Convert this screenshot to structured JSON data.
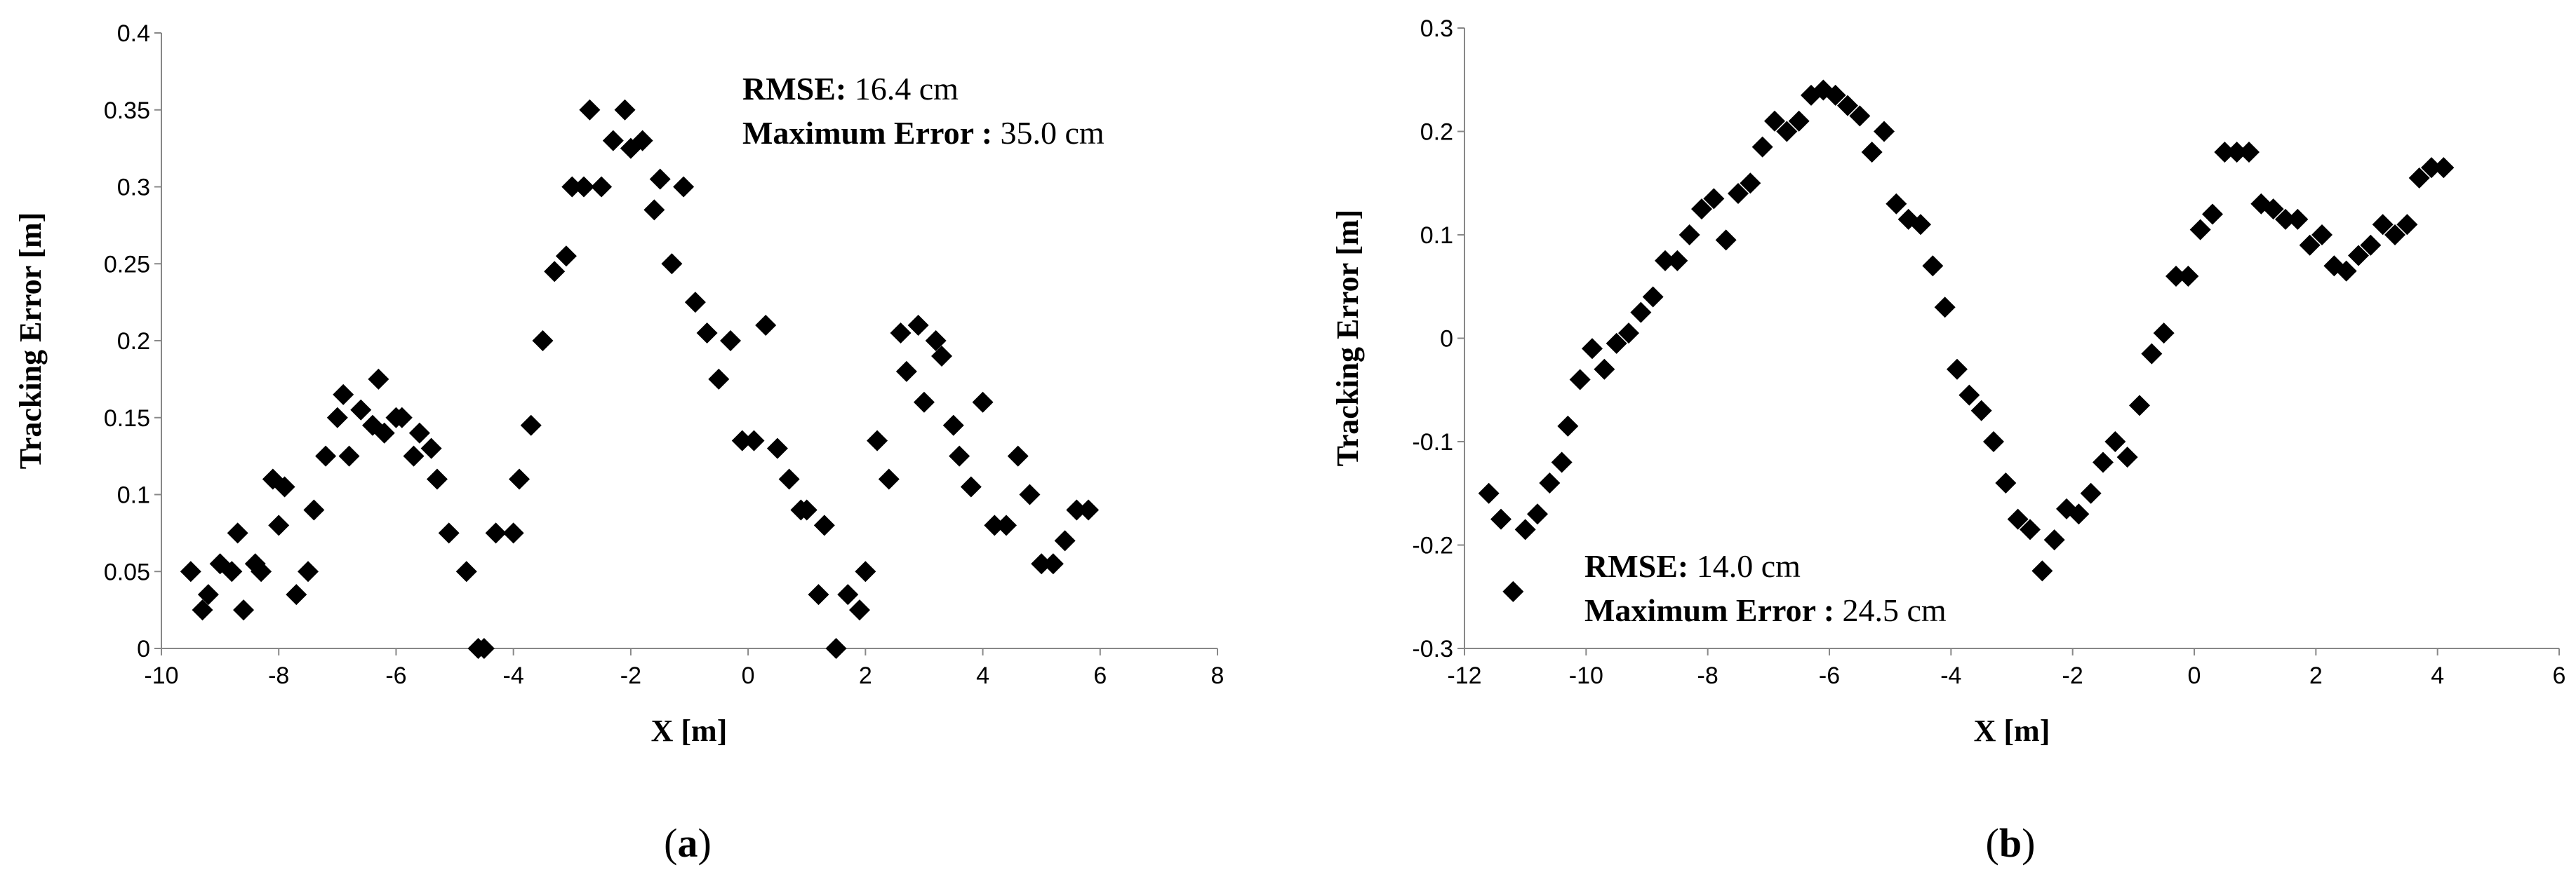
{
  "chart_data": [
    {
      "type": "scatter",
      "panel": "(a)",
      "caption_letter": "a",
      "xlabel": "X [m]",
      "ylabel": "Tracking Error [m]",
      "xlim": [
        -10,
        8
      ],
      "ylim": [
        0,
        0.4
      ],
      "xticks": [
        -10,
        -8,
        -6,
        -4,
        -2,
        0,
        2,
        4,
        6,
        8
      ],
      "yticks": [
        0,
        0.05,
        0.1,
        0.15,
        0.2,
        0.25,
        0.3,
        0.35,
        0.4
      ],
      "xtick_labels": [
        "-10",
        "-8",
        "-6",
        "-4",
        "-2",
        "0",
        "2",
        "4",
        "6",
        "8"
      ],
      "ytick_labels": [
        "0",
        "0.05",
        "0.1",
        "0.15",
        "0.2",
        "0.25",
        "0.3",
        "0.35",
        "0.4"
      ],
      "grid": false,
      "marker": "diamond",
      "annotations": [
        {
          "label": "RMSE:",
          "value": " 16.4 cm"
        },
        {
          "label": "Maximum Error :",
          "value": " 35.0 cm"
        }
      ],
      "x": [
        -9.5,
        -9.3,
        -9.2,
        -9.0,
        -8.8,
        -8.7,
        -8.6,
        -8.4,
        -8.3,
        -8.1,
        -8.0,
        -7.9,
        -7.7,
        -7.5,
        -7.4,
        -7.2,
        -7.0,
        -6.9,
        -6.8,
        -6.6,
        -6.4,
        -6.3,
        -6.2,
        -6.0,
        -5.9,
        -5.7,
        -5.6,
        -5.4,
        -5.3,
        -5.1,
        -4.8,
        -4.6,
        -4.5,
        -4.3,
        -4.0,
        -3.9,
        -3.7,
        -3.5,
        -3.3,
        -3.1,
        -3.0,
        -2.8,
        -2.7,
        -2.5,
        -2.3,
        -2.1,
        -2.0,
        -1.8,
        -1.6,
        -1.5,
        -1.3,
        -1.1,
        -0.9,
        -0.7,
        -0.5,
        -0.3,
        -0.1,
        0.1,
        0.3,
        0.5,
        0.7,
        0.9,
        1.0,
        1.2,
        1.3,
        1.5,
        1.7,
        1.9,
        2.0,
        2.2,
        2.4,
        2.6,
        2.7,
        2.9,
        3.0,
        3.2,
        3.3,
        3.5,
        3.6,
        3.8,
        4.0,
        4.2,
        4.4,
        4.6,
        4.8,
        5.0,
        5.2,
        5.4,
        5.6,
        5.8
      ],
      "y": [
        0.05,
        0.025,
        0.035,
        0.055,
        0.05,
        0.075,
        0.025,
        0.055,
        0.05,
        0.11,
        0.08,
        0.105,
        0.035,
        0.05,
        0.09,
        0.125,
        0.15,
        0.165,
        0.125,
        0.155,
        0.145,
        0.175,
        0.14,
        0.15,
        0.15,
        0.125,
        0.14,
        0.13,
        0.11,
        0.075,
        0.05,
        0.0,
        0.0,
        0.075,
        0.075,
        0.11,
        0.145,
        0.2,
        0.245,
        0.255,
        0.3,
        0.3,
        0.35,
        0.3,
        0.33,
        0.35,
        0.325,
        0.33,
        0.285,
        0.305,
        0.25,
        0.3,
        0.225,
        0.205,
        0.175,
        0.2,
        0.135,
        0.135,
        0.21,
        0.13,
        0.11,
        0.09,
        0.09,
        0.035,
        0.08,
        0.0,
        0.035,
        0.025,
        0.05,
        0.135,
        0.11,
        0.205,
        0.18,
        0.21,
        0.16,
        0.2,
        0.19,
        0.145,
        0.125,
        0.105,
        0.16,
        0.08,
        0.08,
        0.125,
        0.1,
        0.055,
        0.055,
        0.07,
        0.09,
        0.09
      ]
    },
    {
      "type": "scatter",
      "panel": "(b)",
      "caption_letter": "b",
      "xlabel": "X [m]",
      "ylabel": "Tracking Error [m]",
      "xlim": [
        -12,
        6
      ],
      "ylim": [
        -0.3,
        0.3
      ],
      "xticks": [
        -12,
        -10,
        -8,
        -6,
        -4,
        -2,
        0,
        2,
        4,
        6
      ],
      "yticks": [
        -0.3,
        -0.2,
        -0.1,
        0,
        0.1,
        0.2,
        0.3
      ],
      "xtick_labels": [
        "-12",
        "-10",
        "-8",
        "-6",
        "-4",
        "-2",
        "0",
        "2",
        "4",
        "6"
      ],
      "ytick_labels": [
        "-0.3",
        "-0.2",
        "-0.1",
        "0",
        "0.1",
        "0.2",
        "0.3"
      ],
      "grid": false,
      "marker": "diamond",
      "annotations": [
        {
          "label": "RMSE:",
          "value": " 14.0 cm"
        },
        {
          "label": "Maximum Error :",
          "value": " 24.5 cm"
        }
      ],
      "x": [
        -11.6,
        -11.4,
        -11.2,
        -11.0,
        -10.8,
        -10.6,
        -10.4,
        -10.3,
        -10.1,
        -9.9,
        -9.7,
        -9.5,
        -9.3,
        -9.1,
        -8.9,
        -8.7,
        -8.5,
        -8.3,
        -8.1,
        -7.9,
        -7.7,
        -7.5,
        -7.3,
        -7.1,
        -6.9,
        -6.7,
        -6.5,
        -6.3,
        -6.1,
        -5.9,
        -5.7,
        -5.5,
        -5.3,
        -5.1,
        -4.9,
        -4.7,
        -4.5,
        -4.3,
        -4.1,
        -3.9,
        -3.7,
        -3.5,
        -3.3,
        -3.1,
        -2.9,
        -2.7,
        -2.5,
        -2.3,
        -2.1,
        -1.9,
        -1.7,
        -1.5,
        -1.3,
        -1.1,
        -0.9,
        -0.7,
        -0.5,
        -0.3,
        -0.1,
        0.1,
        0.3,
        0.5,
        0.7,
        0.9,
        1.1,
        1.3,
        1.5,
        1.7,
        1.9,
        2.1,
        2.3,
        2.5,
        2.7,
        2.9,
        3.1,
        3.3,
        3.5,
        3.7,
        3.9,
        4.1
      ],
      "y": [
        -0.15,
        -0.175,
        -0.245,
        -0.185,
        -0.17,
        -0.14,
        -0.12,
        -0.085,
        -0.04,
        -0.01,
        -0.03,
        -0.005,
        0.005,
        0.025,
        0.04,
        0.075,
        0.075,
        0.1,
        0.125,
        0.135,
        0.095,
        0.14,
        0.15,
        0.185,
        0.21,
        0.2,
        0.21,
        0.235,
        0.24,
        0.235,
        0.225,
        0.215,
        0.18,
        0.2,
        0.13,
        0.115,
        0.11,
        0.07,
        0.03,
        -0.03,
        -0.055,
        -0.07,
        -0.1,
        -0.14,
        -0.175,
        -0.185,
        -0.225,
        -0.195,
        -0.165,
        -0.17,
        -0.15,
        -0.12,
        -0.1,
        -0.115,
        -0.065,
        -0.015,
        0.005,
        0.06,
        0.06,
        0.105,
        0.12,
        0.18,
        0.18,
        0.18,
        0.13,
        0.125,
        0.115,
        0.115,
        0.09,
        0.1,
        0.07,
        0.065,
        0.08,
        0.09,
        0.11,
        0.1,
        0.11,
        0.155,
        0.165,
        0.165
      ]
    }
  ]
}
